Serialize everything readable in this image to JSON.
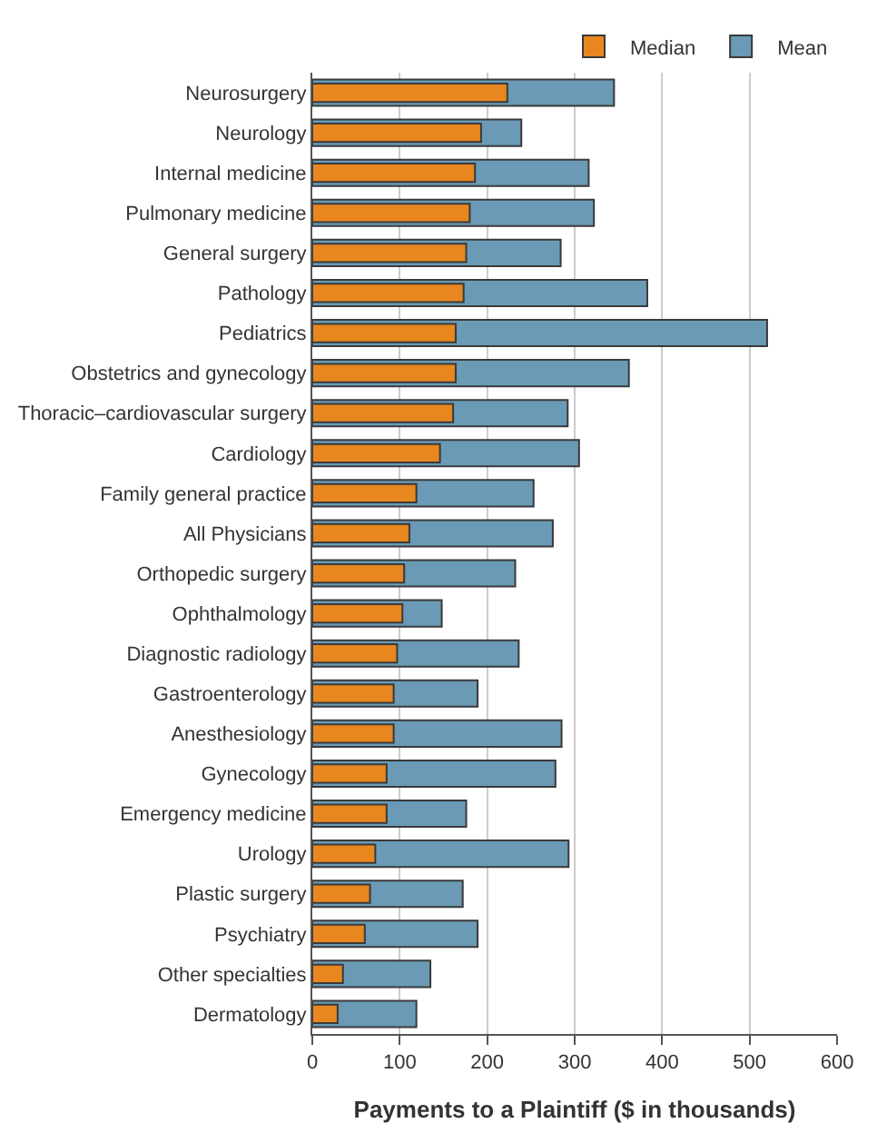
{
  "chart_data": {
    "type": "bar",
    "orientation": "horizontal",
    "xlabel": "Payments to a Plaintiff ($ in thousands)",
    "categories": [
      "Neurosurgery",
      "Neurology",
      "Internal medicine",
      "Pulmonary medicine",
      "General surgery",
      "Pathology",
      "Pediatrics",
      "Obstetrics and gynecology",
      "Thoracic–cardiovascular surgery",
      "Cardiology",
      "Family general practice",
      "All Physicians",
      "Orthopedic surgery",
      "Ophthalmology",
      "Diagnostic radiology",
      "Gastroenterology",
      "Anesthesiology",
      "Gynecology",
      "Emergency medicine",
      "Urology",
      "Plastic surgery",
      "Psychiatry",
      "Other specialties",
      "Dermatology"
    ],
    "series": [
      {
        "name": "Median",
        "color": "#e8861f",
        "values": [
          223,
          193,
          186,
          180,
          176,
          173,
          164,
          164,
          161,
          146,
          119,
          111,
          105,
          103,
          97,
          93,
          93,
          85,
          85,
          72,
          66,
          60,
          35,
          29
        ]
      },
      {
        "name": "Mean",
        "color": "#6a9ab5",
        "values": [
          345,
          239,
          316,
          322,
          284,
          383,
          520,
          362,
          292,
          305,
          253,
          275,
          232,
          148,
          236,
          189,
          285,
          278,
          176,
          293,
          172,
          189,
          135,
          119
        ]
      }
    ],
    "xlim": [
      0,
      600
    ],
    "xticks": [
      0,
      100,
      200,
      300,
      400,
      500,
      600
    ],
    "grid": "x",
    "legend": "top right"
  }
}
